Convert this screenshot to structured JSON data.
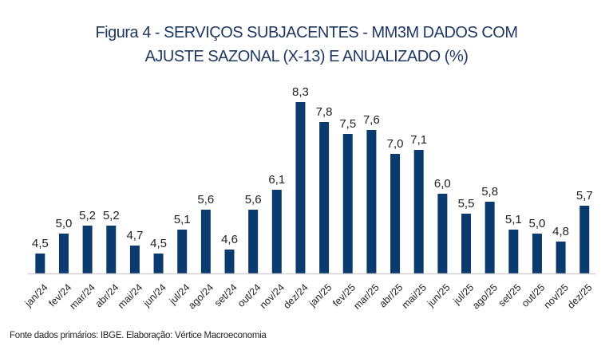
{
  "chart_data": {
    "type": "bar",
    "title": "Figura 4 - SERVIÇOS SUBJACENTES - MM3M DADOS COM AJUSTE SAZONAL (X-13) E ANUALIZADO (%)",
    "title_lines": [
      "Figura 4 - SERVIÇOS SUBJACENTES - MM3M DADOS COM",
      "AJUSTE SAZONAL (X-13) E ANUALIZADO (%)"
    ],
    "xlabel": "",
    "ylabel": "",
    "ylim": [
      4.0,
      8.6
    ],
    "grid": false,
    "legend": "none",
    "categories": [
      "jan/24",
      "fev/24",
      "mar/24",
      "abr/24",
      "mai/24",
      "jun/24",
      "jul/24",
      "ago/24",
      "set/24",
      "out/24",
      "nov/24",
      "dez/24",
      "jan/25",
      "fev/25",
      "mar/25",
      "abr/25",
      "mai/25",
      "jun/25",
      "jul/25",
      "ago/25",
      "set/25",
      "out/25",
      "nov/25",
      "dez/25"
    ],
    "values": [
      4.5,
      5.0,
      5.2,
      5.2,
      4.7,
      4.5,
      5.1,
      5.6,
      4.6,
      5.6,
      6.1,
      8.3,
      7.8,
      7.5,
      7.6,
      7.0,
      7.1,
      6.0,
      5.5,
      5.8,
      5.1,
      5.0,
      4.8,
      5.7
    ],
    "data_labels": [
      "4,5",
      "5,0",
      "5,2",
      "5,2",
      "4,7",
      "4,5",
      "5,1",
      "5,6",
      "4,6",
      "5,6",
      "6,1",
      "8,3",
      "7,8",
      "7,5",
      "7,6",
      "7,0",
      "7,1",
      "6,0",
      "5,5",
      "5,8",
      "5,1",
      "5,0",
      "4,8",
      "5,7"
    ],
    "colors": {
      "bar": "#0b3a6e",
      "axis": "#d0d0d0",
      "title": "#1f3864",
      "label": "#222222"
    }
  },
  "footer": "Fonte dados primários: IBGE. Elaboração: Vértice Macroeconomia"
}
